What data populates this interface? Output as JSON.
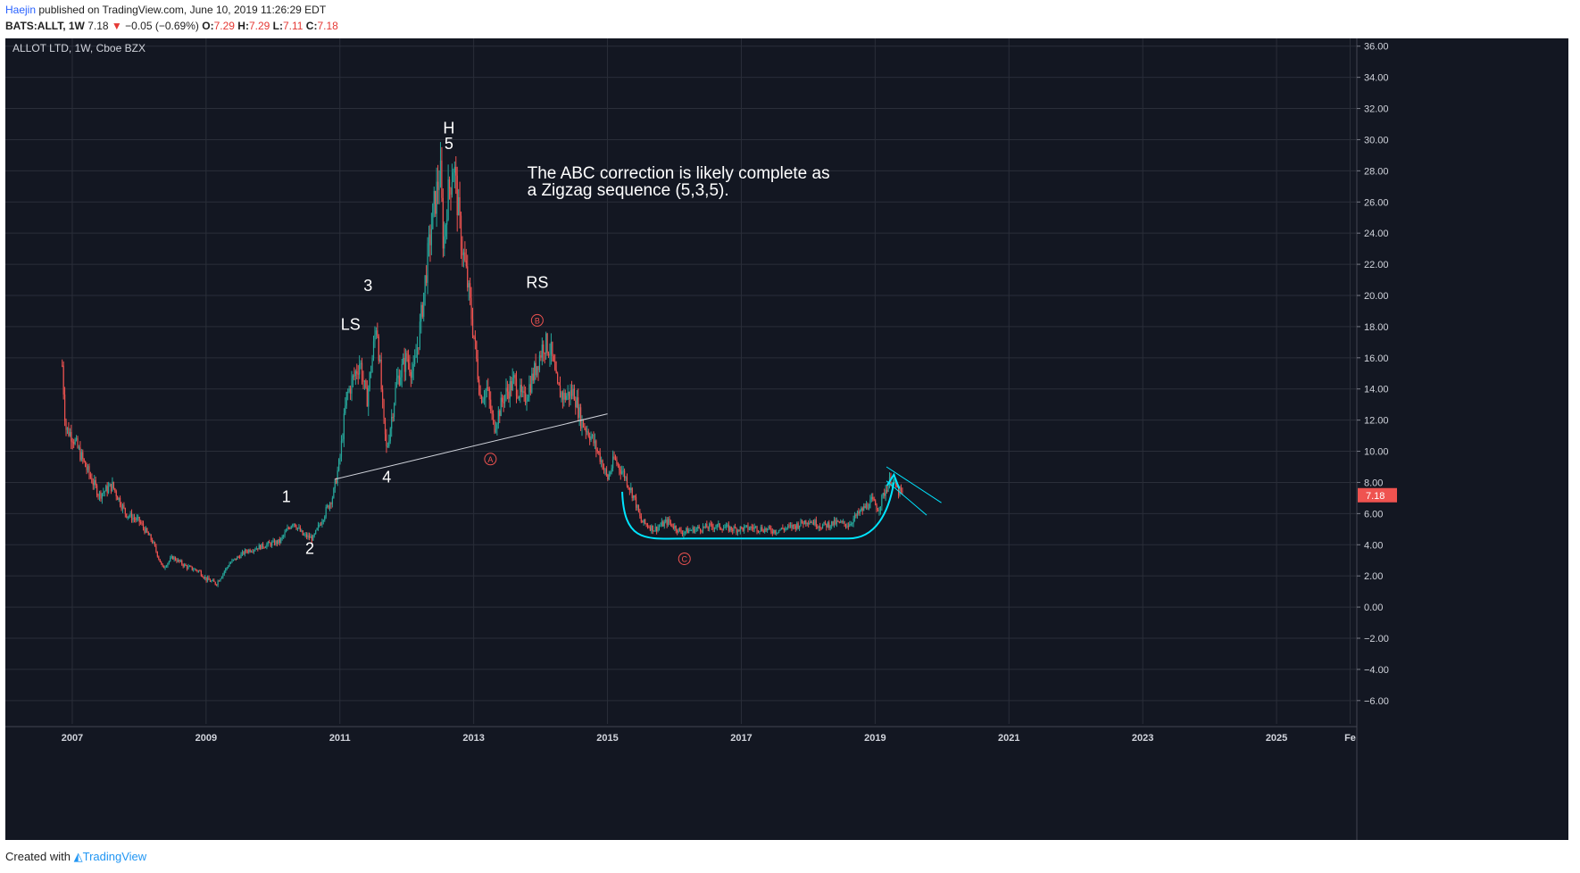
{
  "header": {
    "author": "Haejin",
    "published_text": "published on TradingView.com, June 10, 2019 11:26:29 EDT",
    "symbol": "BATS:ALLT, 1W",
    "last_price": "7.18",
    "change_arrow": "▼",
    "change": "−0.05 (−0.69%)",
    "open_label": "O:",
    "open": "7.29",
    "high_label": "H:",
    "high": "7.29",
    "low_label": "L:",
    "low": "7.11",
    "close_label": "C:",
    "close": "7.18"
  },
  "footer": {
    "created_with": "Created with",
    "brand": "TradingView"
  },
  "colors": {
    "background": "#131722",
    "grid": "#2a2e39",
    "up": "#26a69a",
    "down": "#ef5350",
    "annotation_text": "#ffffff",
    "cyan": "#00e5ff",
    "trendline": "#d1d4dc",
    "wave_circle": "#ef5350",
    "price_badge": "#ef5350",
    "axis_text": "#d1d4dc"
  },
  "chart_data": {
    "type": "candlestick",
    "title": "ALLOT LTD, 1W, Cboe BZX",
    "xlabel": "",
    "ylabel": "",
    "x_range": [
      2006.0,
      2026.2
    ],
    "ylim": [
      -7.5,
      36.5
    ],
    "x_tick_labels": [
      "2007",
      "2009",
      "2011",
      "2013",
      "2015",
      "2017",
      "2019",
      "2021",
      "2023",
      "2025",
      "Fe"
    ],
    "x_tick_values": [
      2007,
      2009,
      2011,
      2013,
      2015,
      2017,
      2019,
      2021,
      2023,
      2025,
      2026.1
    ],
    "y_tick_values": [
      36,
      34,
      32,
      30,
      28,
      26,
      24,
      22,
      20,
      18,
      16,
      14,
      12,
      10,
      8,
      6,
      4,
      2,
      0,
      -2,
      -4,
      -6
    ],
    "y_tick_labels": [
      "36.00",
      "34.00",
      "32.00",
      "30.00",
      "28.00",
      "26.00",
      "24.00",
      "22.00",
      "20.00",
      "18.00",
      "16.00",
      "14.00",
      "12.00",
      "10.00",
      "8.00",
      "6.00",
      "4.00",
      "2.00",
      "0.00",
      "−2.00",
      "−4.00",
      "−6.00"
    ],
    "grid": true,
    "last_price_label": "7.18",
    "last_price_value": 7.18,
    "series": [
      {
        "interpolated_weekly_close_path": [
          [
            2006.85,
            15.5
          ],
          [
            2006.9,
            11.5
          ],
          [
            2007.0,
            11.0
          ],
          [
            2007.2,
            9.0
          ],
          [
            2007.4,
            7.2
          ],
          [
            2007.6,
            7.8
          ],
          [
            2007.8,
            6.0
          ],
          [
            2008.0,
            5.5
          ],
          [
            2008.2,
            4.2
          ],
          [
            2008.35,
            2.5
          ],
          [
            2008.5,
            3.2
          ],
          [
            2008.7,
            2.6
          ],
          [
            2008.9,
            2.3
          ],
          [
            2009.0,
            1.8
          ],
          [
            2009.15,
            1.5
          ],
          [
            2009.35,
            2.8
          ],
          [
            2009.6,
            3.6
          ],
          [
            2009.9,
            4.0
          ],
          [
            2010.1,
            4.2
          ],
          [
            2010.3,
            5.5
          ],
          [
            2010.45,
            4.6
          ],
          [
            2010.6,
            4.4
          ],
          [
            2010.75,
            5.8
          ],
          [
            2010.9,
            7.2
          ],
          [
            2011.0,
            9.5
          ],
          [
            2011.1,
            13.5
          ],
          [
            2011.3,
            15.8
          ],
          [
            2011.4,
            13.2
          ],
          [
            2011.5,
            16.5
          ],
          [
            2011.55,
            18.5
          ],
          [
            2011.65,
            12.0
          ],
          [
            2011.7,
            10.0
          ],
          [
            2011.85,
            14.5
          ],
          [
            2012.0,
            16.0
          ],
          [
            2012.1,
            15.0
          ],
          [
            2012.2,
            18.0
          ],
          [
            2012.3,
            22.0
          ],
          [
            2012.4,
            25.5
          ],
          [
            2012.5,
            28.0
          ],
          [
            2012.55,
            23.0
          ],
          [
            2012.6,
            26.0
          ],
          [
            2012.7,
            28.5
          ],
          [
            2012.8,
            24.0
          ],
          [
            2012.9,
            21.0
          ],
          [
            2013.0,
            17.5
          ],
          [
            2013.1,
            13.5
          ],
          [
            2013.2,
            14.0
          ],
          [
            2013.3,
            11.5
          ],
          [
            2013.45,
            13.5
          ],
          [
            2013.6,
            14.5
          ],
          [
            2013.75,
            13.2
          ],
          [
            2013.9,
            15.0
          ],
          [
            2014.05,
            17.0
          ],
          [
            2014.15,
            16.5
          ],
          [
            2014.25,
            14.0
          ],
          [
            2014.35,
            13.5
          ],
          [
            2014.5,
            13.8
          ],
          [
            2014.6,
            12.0
          ],
          [
            2014.75,
            11.0
          ],
          [
            2014.9,
            9.5
          ],
          [
            2015.0,
            8.2
          ],
          [
            2015.1,
            9.5
          ],
          [
            2015.25,
            8.5
          ],
          [
            2015.4,
            7.0
          ],
          [
            2015.5,
            5.5
          ],
          [
            2015.7,
            5.0
          ],
          [
            2015.9,
            5.5
          ],
          [
            2016.1,
            4.8
          ],
          [
            2016.3,
            5.0
          ],
          [
            2016.6,
            5.2
          ],
          [
            2016.9,
            5.0
          ],
          [
            2017.2,
            5.1
          ],
          [
            2017.5,
            4.9
          ],
          [
            2017.8,
            5.2
          ],
          [
            2018.0,
            5.6
          ],
          [
            2018.2,
            5.2
          ],
          [
            2018.4,
            5.4
          ],
          [
            2018.6,
            5.3
          ],
          [
            2018.8,
            6.2
          ],
          [
            2018.95,
            6.8
          ],
          [
            2019.05,
            6.3
          ],
          [
            2019.15,
            7.5
          ],
          [
            2019.25,
            8.3
          ],
          [
            2019.33,
            7.5
          ],
          [
            2019.42,
            7.18
          ]
        ]
      }
    ],
    "annotations": [
      {
        "text": "H",
        "x": 2012.63,
        "y": 30.4
      },
      {
        "text": "5",
        "x": 2012.63,
        "y": 29.4
      },
      {
        "text": "3",
        "x": 2011.42,
        "y": 20.3
      },
      {
        "text": "LS",
        "x": 2011.16,
        "y": 17.8
      },
      {
        "text": "RS",
        "x": 2013.95,
        "y": 20.5
      },
      {
        "text": "1",
        "x": 2010.2,
        "y": 6.75
      },
      {
        "text": "2",
        "x": 2010.55,
        "y": 3.4
      },
      {
        "text": "4",
        "x": 2011.7,
        "y": 8.0
      }
    ],
    "wave_labels": [
      {
        "text": "A",
        "x": 2013.25,
        "y": 9.5
      },
      {
        "text": "B",
        "x": 2013.95,
        "y": 18.4
      },
      {
        "text": "C",
        "x": 2016.15,
        "y": 3.1
      }
    ],
    "note_lines": [
      "The ABC correction is likely complete as",
      "a Zigzag sequence (5,3,5)."
    ],
    "note_anchor": {
      "x": 2013.8,
      "y": 27.5
    }
  }
}
